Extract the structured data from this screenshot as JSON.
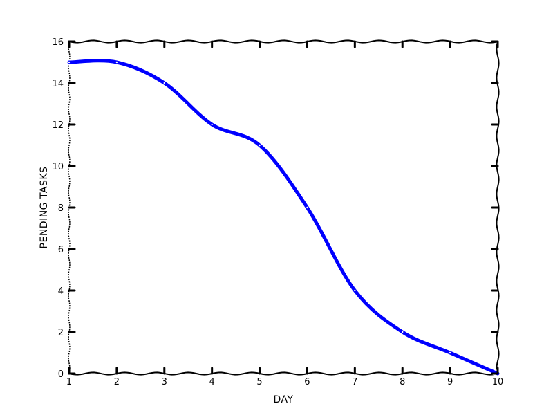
{
  "chart_data": {
    "type": "line",
    "title": "",
    "xlabel": "DAY",
    "ylabel": "PENDING TASKS",
    "x": [
      1,
      2,
      3,
      4,
      5,
      6,
      7,
      8,
      9,
      10
    ],
    "series": [
      {
        "values": [
          15,
          15,
          14,
          12,
          11,
          8,
          4,
          2,
          1,
          0
        ],
        "color": "#0000ff"
      }
    ],
    "xlim": [
      1,
      10
    ],
    "ylim": [
      0,
      16
    ],
    "xticks": [
      "1",
      "2",
      "3",
      "4",
      "5",
      "6",
      "7",
      "8",
      "9",
      "10"
    ],
    "yticks": [
      "0",
      "2",
      "4",
      "6",
      "8",
      "10",
      "12",
      "14",
      "16"
    ],
    "grid": false,
    "style": "xkcd-sketch"
  }
}
